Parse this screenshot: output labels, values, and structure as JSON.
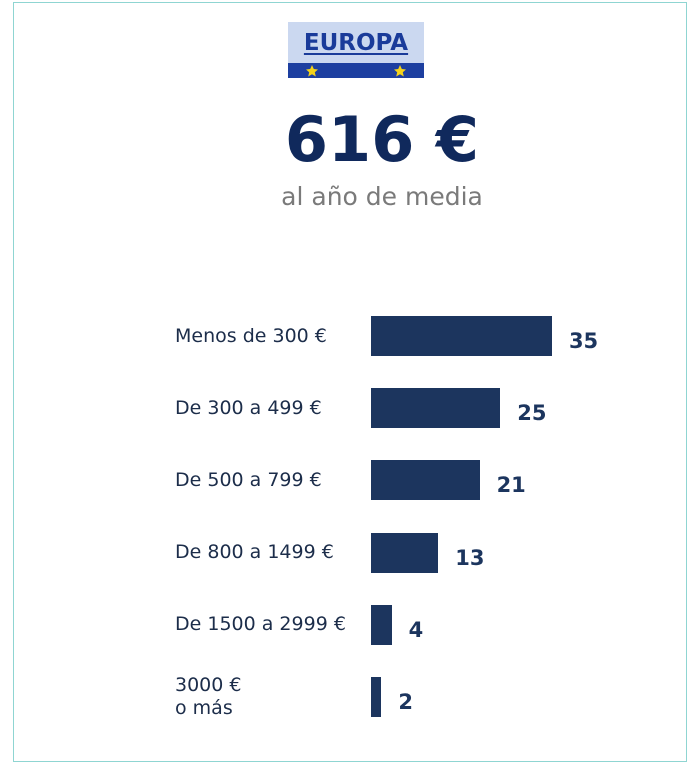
{
  "badge": "EUROPA",
  "headline": "616 €",
  "subtitle": "al año de media",
  "chart_data": {
    "type": "bar",
    "orientation": "horizontal",
    "color": "#1c355e",
    "categories": [
      "Menos de 300 €",
      "De 300 a 499 €",
      "De 500 a 799 €",
      "De 800 a 1499 €",
      "De 1500 a 2999 €",
      "3000 €\no más"
    ],
    "values": [
      35,
      25,
      21,
      13,
      4,
      2
    ]
  }
}
